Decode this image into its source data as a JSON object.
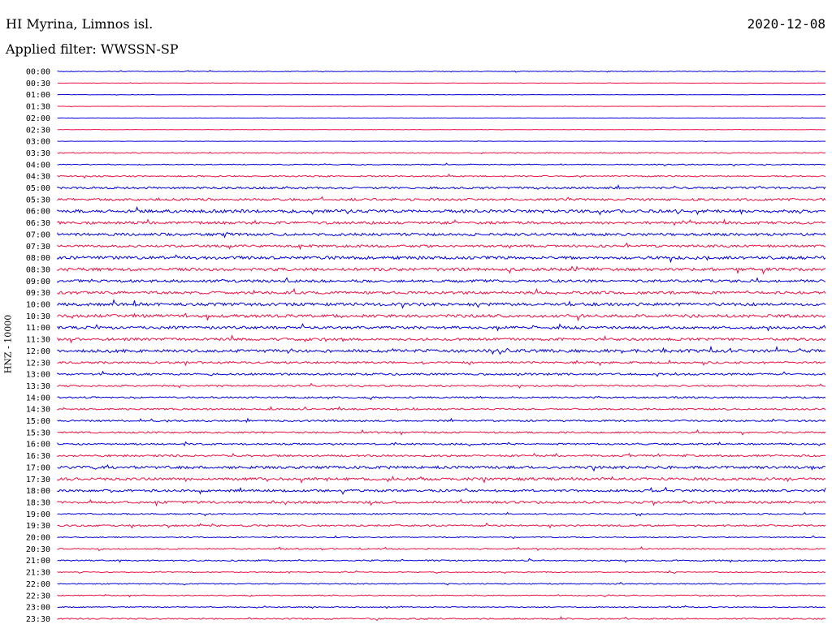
{
  "header": {
    "station": "HI Myrina, Limnos isl.",
    "date": "2020-12-08",
    "filter": "Applied filter: WWSSN-SP"
  },
  "chart_data": {
    "type": "line",
    "title": "HI Myrina, Limnos isl.",
    "ylabel": "HNZ - 10000",
    "colors": [
      "#0000dd",
      "#ee1144"
    ],
    "rows": [
      "00:00",
      "00:30",
      "01:00",
      "01:30",
      "02:00",
      "02:30",
      "03:00",
      "03:30",
      "04:00",
      "04:30",
      "05:00",
      "05:30",
      "06:00",
      "06:30",
      "07:00",
      "07:30",
      "08:00",
      "08:30",
      "09:00",
      "09:30",
      "10:00",
      "10:30",
      "11:00",
      "11:30",
      "12:00",
      "12:30",
      "13:00",
      "13:30",
      "14:00",
      "14:30",
      "15:00",
      "15:30",
      "16:00",
      "16:30",
      "17:00",
      "17:30",
      "18:00",
      "18:30",
      "19:00",
      "19:30",
      "20:00",
      "20:30",
      "21:00",
      "21:30",
      "22:00",
      "22:30",
      "23:00",
      "23:30"
    ],
    "noise_level": [
      0.4,
      0.2,
      0.2,
      0.2,
      0.2,
      0.2,
      0.2,
      0.6,
      0.6,
      0.8,
      1.2,
      1.4,
      1.8,
      1.6,
      1.6,
      1.4,
      1.8,
      1.8,
      1.6,
      1.6,
      1.8,
      1.8,
      1.6,
      1.6,
      1.8,
      1.2,
      1.2,
      1.0,
      1.0,
      1.0,
      1.0,
      1.0,
      1.0,
      1.2,
      1.6,
      1.6,
      1.4,
      1.4,
      0.8,
      1.0,
      0.6,
      0.8,
      0.8,
      0.6,
      0.6,
      0.6,
      0.6,
      0.8
    ],
    "grid": false
  }
}
